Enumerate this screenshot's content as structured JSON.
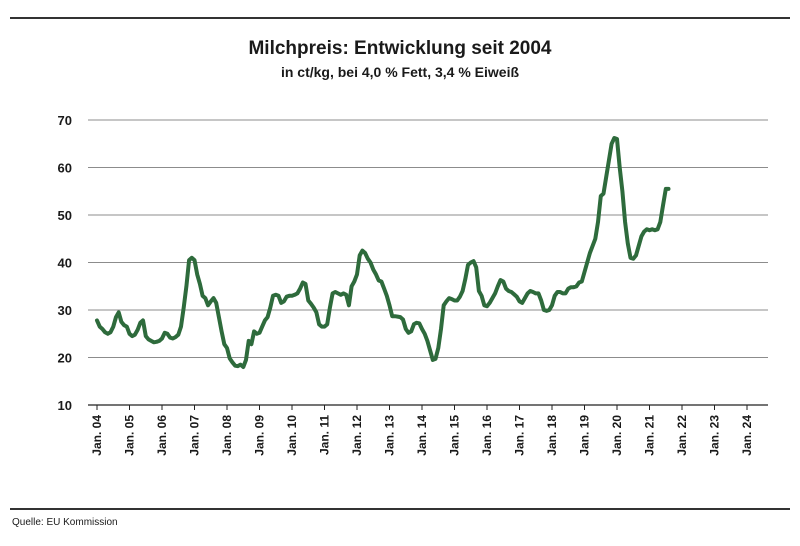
{
  "source": "Quelle: EU Kommission",
  "chart_data": {
    "type": "line",
    "title": "Milchpreis: Entwicklung seit 2004",
    "subtitle": "in ct/kg, bei 4,0 % Fett, 3,4 % Eiweiß",
    "xlabel": "",
    "ylabel": "",
    "ylim": [
      10,
      70
    ],
    "yticks": [
      10,
      20,
      30,
      40,
      50,
      60,
      70
    ],
    "x_tick_labels": [
      "Jan. 04",
      "Jan. 05",
      "Jan. 06",
      "Jan. 07",
      "Jan. 08",
      "Jan. 09",
      "Jan. 10",
      "Jan. 11",
      "Jan. 12",
      "Jan. 13",
      "Jan. 14",
      "Jan. 15",
      "Jan. 16",
      "Jan. 17",
      "Jan. 18",
      "Jan. 19",
      "Jan. 20",
      "Jan. 21",
      "Jan. 22",
      "Jan. 23",
      "Jan. 24"
    ],
    "grid": "horizontal",
    "line_color": "#2e6b3c",
    "series": [
      {
        "points": [
          [
            "2004-01",
            27.8
          ],
          [
            "2004-02",
            26.5
          ],
          [
            "2004-03",
            26.0
          ],
          [
            "2004-04",
            25.3
          ],
          [
            "2004-05",
            25.0
          ],
          [
            "2004-06",
            25.3
          ],
          [
            "2004-07",
            26.5
          ],
          [
            "2004-08",
            28.5
          ],
          [
            "2004-09",
            29.5
          ],
          [
            "2004-10",
            27.5
          ],
          [
            "2004-11",
            26.8
          ],
          [
            "2004-12",
            26.5
          ],
          [
            "2005-01",
            25.0
          ],
          [
            "2005-02",
            24.5
          ],
          [
            "2005-03",
            24.8
          ],
          [
            "2005-04",
            25.8
          ],
          [
            "2005-05",
            27.3
          ],
          [
            "2005-06",
            27.8
          ],
          [
            "2005-07",
            24.5
          ],
          [
            "2005-08",
            23.8
          ],
          [
            "2005-09",
            23.5
          ],
          [
            "2005-10",
            23.2
          ],
          [
            "2005-11",
            23.3
          ],
          [
            "2005-12",
            23.5
          ],
          [
            "2006-01",
            24.0
          ],
          [
            "2006-02",
            25.2
          ],
          [
            "2006-03",
            25.0
          ],
          [
            "2006-04",
            24.2
          ],
          [
            "2006-05",
            24.0
          ],
          [
            "2006-06",
            24.3
          ],
          [
            "2006-07",
            24.8
          ],
          [
            "2006-08",
            26.5
          ],
          [
            "2006-09",
            30.5
          ],
          [
            "2006-10",
            35.0
          ],
          [
            "2006-11",
            40.5
          ],
          [
            "2006-12",
            41.0
          ],
          [
            "2007-01",
            40.5
          ],
          [
            "2007-02",
            37.5
          ],
          [
            "2007-03",
            35.5
          ],
          [
            "2007-04",
            33.0
          ],
          [
            "2007-05",
            32.5
          ],
          [
            "2007-06",
            31.0
          ],
          [
            "2007-07",
            31.8
          ],
          [
            "2007-08",
            32.5
          ],
          [
            "2007-09",
            31.5
          ],
          [
            "2007-10",
            28.5
          ],
          [
            "2007-11",
            25.5
          ],
          [
            "2007-12",
            22.8
          ],
          [
            "2008-01",
            22.0
          ],
          [
            "2008-02",
            19.8
          ],
          [
            "2008-03",
            19.0
          ],
          [
            "2008-04",
            18.3
          ],
          [
            "2008-05",
            18.2
          ],
          [
            "2008-06",
            18.5
          ],
          [
            "2008-07",
            18.0
          ],
          [
            "2008-08",
            19.5
          ],
          [
            "2008-09",
            23.5
          ],
          [
            "2008-10",
            22.8
          ],
          [
            "2008-11",
            25.5
          ],
          [
            "2008-12",
            25.0
          ],
          [
            "2009-01",
            25.2
          ],
          [
            "2009-02",
            26.5
          ],
          [
            "2009-03",
            27.8
          ],
          [
            "2009-04",
            28.5
          ],
          [
            "2009-05",
            30.5
          ],
          [
            "2009-06",
            33.0
          ],
          [
            "2009-07",
            33.2
          ],
          [
            "2009-08",
            33.0
          ],
          [
            "2009-09",
            31.5
          ],
          [
            "2009-10",
            31.8
          ],
          [
            "2009-11",
            32.8
          ],
          [
            "2009-12",
            33.0
          ],
          [
            "2010-01",
            33.0
          ],
          [
            "2010-02",
            33.2
          ],
          [
            "2010-03",
            33.5
          ],
          [
            "2010-04",
            34.5
          ],
          [
            "2010-05",
            35.8
          ],
          [
            "2010-06",
            35.5
          ],
          [
            "2010-07",
            32.0
          ],
          [
            "2010-08",
            31.3
          ],
          [
            "2010-09",
            30.5
          ],
          [
            "2010-10",
            29.5
          ],
          [
            "2010-11",
            27.0
          ],
          [
            "2010-12",
            26.5
          ],
          [
            "2011-01",
            26.5
          ],
          [
            "2011-02",
            27.0
          ],
          [
            "2011-03",
            30.5
          ],
          [
            "2011-04",
            33.5
          ],
          [
            "2011-05",
            33.8
          ],
          [
            "2011-06",
            33.5
          ],
          [
            "2011-07",
            33.2
          ],
          [
            "2011-08",
            33.5
          ],
          [
            "2011-09",
            33.2
          ],
          [
            "2011-10",
            31.0
          ],
          [
            "2011-11",
            35.0
          ],
          [
            "2011-12",
            36.0
          ],
          [
            "2012-01",
            37.5
          ],
          [
            "2012-02",
            41.5
          ],
          [
            "2012-03",
            42.5
          ],
          [
            "2012-04",
            42.0
          ],
          [
            "2012-05",
            40.8
          ],
          [
            "2012-06",
            40.0
          ],
          [
            "2012-07",
            38.5
          ],
          [
            "2012-08",
            37.5
          ],
          [
            "2012-09",
            36.2
          ],
          [
            "2012-10",
            36.0
          ],
          [
            "2012-11",
            34.5
          ],
          [
            "2012-12",
            33.0
          ],
          [
            "2013-01",
            31.0
          ],
          [
            "2013-02",
            28.7
          ],
          [
            "2013-03",
            28.7
          ],
          [
            "2013-04",
            28.6
          ],
          [
            "2013-05",
            28.5
          ],
          [
            "2013-06",
            28.0
          ],
          [
            "2013-07",
            26.0
          ],
          [
            "2013-08",
            25.2
          ],
          [
            "2013-09",
            25.5
          ],
          [
            "2013-10",
            27.0
          ],
          [
            "2013-11",
            27.3
          ],
          [
            "2013-12",
            27.2
          ],
          [
            "2014-01",
            26.0
          ],
          [
            "2014-02",
            25.0
          ],
          [
            "2014-03",
            23.5
          ],
          [
            "2014-04",
            21.5
          ],
          [
            "2014-05",
            19.5
          ],
          [
            "2014-06",
            19.7
          ],
          [
            "2014-07",
            22.0
          ],
          [
            "2014-08",
            26.0
          ],
          [
            "2014-09",
            31.0
          ],
          [
            "2014-10",
            31.8
          ],
          [
            "2014-11",
            32.5
          ],
          [
            "2014-12",
            32.3
          ],
          [
            "2015-01",
            32.0
          ],
          [
            "2015-02",
            32.0
          ],
          [
            "2015-03",
            32.8
          ],
          [
            "2015-04",
            34.0
          ],
          [
            "2015-05",
            36.5
          ],
          [
            "2015-06",
            39.5
          ],
          [
            "2015-07",
            40.0
          ],
          [
            "2015-08",
            40.3
          ],
          [
            "2015-09",
            39.0
          ],
          [
            "2015-10",
            34.0
          ],
          [
            "2015-11",
            33.0
          ],
          [
            "2015-12",
            31.0
          ],
          [
            "2016-01",
            30.8
          ],
          [
            "2016-02",
            31.5
          ],
          [
            "2016-03",
            32.5
          ],
          [
            "2016-04",
            33.5
          ],
          [
            "2016-05",
            35.0
          ],
          [
            "2016-06",
            36.3
          ],
          [
            "2016-07",
            36.0
          ],
          [
            "2016-08",
            34.5
          ],
          [
            "2016-09",
            34.0
          ],
          [
            "2016-10",
            33.8
          ],
          [
            "2016-11",
            33.3
          ],
          [
            "2016-12",
            32.8
          ],
          [
            "2017-01",
            31.8
          ],
          [
            "2017-02",
            31.5
          ],
          [
            "2017-03",
            32.5
          ],
          [
            "2017-04",
            33.5
          ],
          [
            "2017-05",
            34.0
          ],
          [
            "2017-06",
            33.8
          ],
          [
            "2017-07",
            33.5
          ],
          [
            "2017-08",
            33.5
          ],
          [
            "2017-09",
            32.0
          ],
          [
            "2017-10",
            30.0
          ],
          [
            "2017-11",
            29.8
          ],
          [
            "2017-12",
            30.0
          ],
          [
            "2018-01",
            31.0
          ],
          [
            "2018-02",
            33.0
          ],
          [
            "2018-03",
            33.8
          ],
          [
            "2018-04",
            33.8
          ],
          [
            "2018-05",
            33.5
          ],
          [
            "2018-06",
            33.5
          ],
          [
            "2018-07",
            34.5
          ],
          [
            "2018-08",
            34.8
          ],
          [
            "2018-09",
            34.8
          ],
          [
            "2018-10",
            35.0
          ],
          [
            "2018-11",
            35.8
          ],
          [
            "2018-12",
            36.0
          ],
          [
            "2019-01",
            38.0
          ],
          [
            "2019-02",
            40.0
          ],
          [
            "2019-03",
            42.0
          ],
          [
            "2019-04",
            43.5
          ],
          [
            "2019-05",
            45.0
          ],
          [
            "2019-06",
            48.5
          ],
          [
            "2019-07",
            54.0
          ],
          [
            "2019-08",
            54.5
          ],
          [
            "2019-09",
            58.0
          ],
          [
            "2019-10",
            61.5
          ],
          [
            "2019-11",
            65.0
          ],
          [
            "2019-12",
            66.2
          ],
          [
            "2020-01",
            66.0
          ],
          [
            "2020-02",
            60.0
          ],
          [
            "2020-03",
            55.0
          ],
          [
            "2020-04",
            48.5
          ],
          [
            "2020-05",
            44.0
          ],
          [
            "2020-06",
            41.0
          ],
          [
            "2020-07",
            40.8
          ],
          [
            "2020-08",
            41.5
          ],
          [
            "2020-09",
            43.5
          ],
          [
            "2020-10",
            45.5
          ],
          [
            "2020-11",
            46.5
          ],
          [
            "2020-12",
            47.0
          ],
          [
            "2021-01",
            46.8
          ],
          [
            "2021-02",
            47.0
          ],
          [
            "2021-03",
            46.8
          ],
          [
            "2021-04",
            47.0
          ],
          [
            "2021-05",
            48.5
          ],
          [
            "2021-06",
            52.0
          ],
          [
            "2021-07",
            55.5
          ],
          [
            "2021-08",
            55.5
          ]
        ]
      }
    ]
  }
}
